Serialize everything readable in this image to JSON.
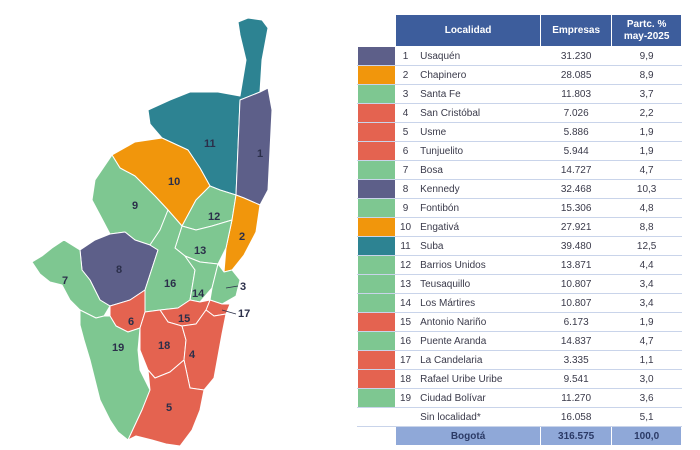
{
  "header": {
    "localidad": "Localidad",
    "empresas": "Empresas",
    "partc": "Partc. %",
    "period": "may-2025"
  },
  "colors": {
    "purple": "#5d5f89",
    "orange": "#f1960c",
    "green": "#7ec791",
    "red": "#e46350",
    "teal": "#2d8392",
    "header": "#3d5d9c",
    "total": "#8fa8d8"
  },
  "rows": [
    {
      "n": "1",
      "name": "Usaquén",
      "empresas": "31.230",
      "pct": "9,9",
      "color": "#5d5f89"
    },
    {
      "n": "2",
      "name": "Chapinero",
      "empresas": "28.085",
      "pct": "8,9",
      "color": "#f1960c"
    },
    {
      "n": "3",
      "name": "Santa Fe",
      "empresas": "11.803",
      "pct": "3,7",
      "color": "#7ec791"
    },
    {
      "n": "4",
      "name": "San Cristóbal",
      "empresas": "7.026",
      "pct": "2,2",
      "color": "#e46350"
    },
    {
      "n": "5",
      "name": "Usme",
      "empresas": "5.886",
      "pct": "1,9",
      "color": "#e46350"
    },
    {
      "n": "6",
      "name": "Tunjuelito",
      "empresas": "5.944",
      "pct": "1,9",
      "color": "#e46350"
    },
    {
      "n": "7",
      "name": "Bosa",
      "empresas": "14.727",
      "pct": "4,7",
      "color": "#7ec791"
    },
    {
      "n": "8",
      "name": "Kennedy",
      "empresas": "32.468",
      "pct": "10,3",
      "color": "#5d5f89"
    },
    {
      "n": "9",
      "name": "Fontibón",
      "empresas": "15.306",
      "pct": "4,8",
      "color": "#7ec791"
    },
    {
      "n": "10",
      "name": "Engativá",
      "empresas": "27.921",
      "pct": "8,8",
      "color": "#f1960c"
    },
    {
      "n": "11",
      "name": "Suba",
      "empresas": "39.480",
      "pct": "12,5",
      "color": "#2d8392"
    },
    {
      "n": "12",
      "name": "Barrios Unidos",
      "empresas": "13.871",
      "pct": "4,4",
      "color": "#7ec791"
    },
    {
      "n": "13",
      "name": "Teusaquillo",
      "empresas": "10.807",
      "pct": "3,4",
      "color": "#7ec791"
    },
    {
      "n": "14",
      "name": "Los Mártires",
      "empresas": "10.807",
      "pct": "3,4",
      "color": "#7ec791"
    },
    {
      "n": "15",
      "name": "Antonio Nariño",
      "empresas": "6.173",
      "pct": "1,9",
      "color": "#e46350"
    },
    {
      "n": "16",
      "name": "Puente Aranda",
      "empresas": "14.837",
      "pct": "4,7",
      "color": "#7ec791"
    },
    {
      "n": "17",
      "name": "La Candelaria",
      "empresas": "3.335",
      "pct": "1,1",
      "color": "#e46350"
    },
    {
      "n": "18",
      "name": "Rafael Uribe Uribe",
      "empresas": "9.541",
      "pct": "3,0",
      "color": "#e46350"
    },
    {
      "n": "19",
      "name": "Ciudad Bolívar",
      "empresas": "11.270",
      "pct": "3,6",
      "color": "#7ec791"
    },
    {
      "n": "",
      "name": "Sin localidad*",
      "empresas": "16.058",
      "pct": "5,1",
      "color": ""
    }
  ],
  "total": {
    "label": "Bogotá",
    "empresas": "316.575",
    "pct": "100,0"
  },
  "map_labels": [
    "1",
    "2",
    "3",
    "4",
    "5",
    "6",
    "7",
    "8",
    "9",
    "10",
    "11",
    "12",
    "13",
    "14",
    "15",
    "16",
    "17",
    "18",
    "19"
  ]
}
